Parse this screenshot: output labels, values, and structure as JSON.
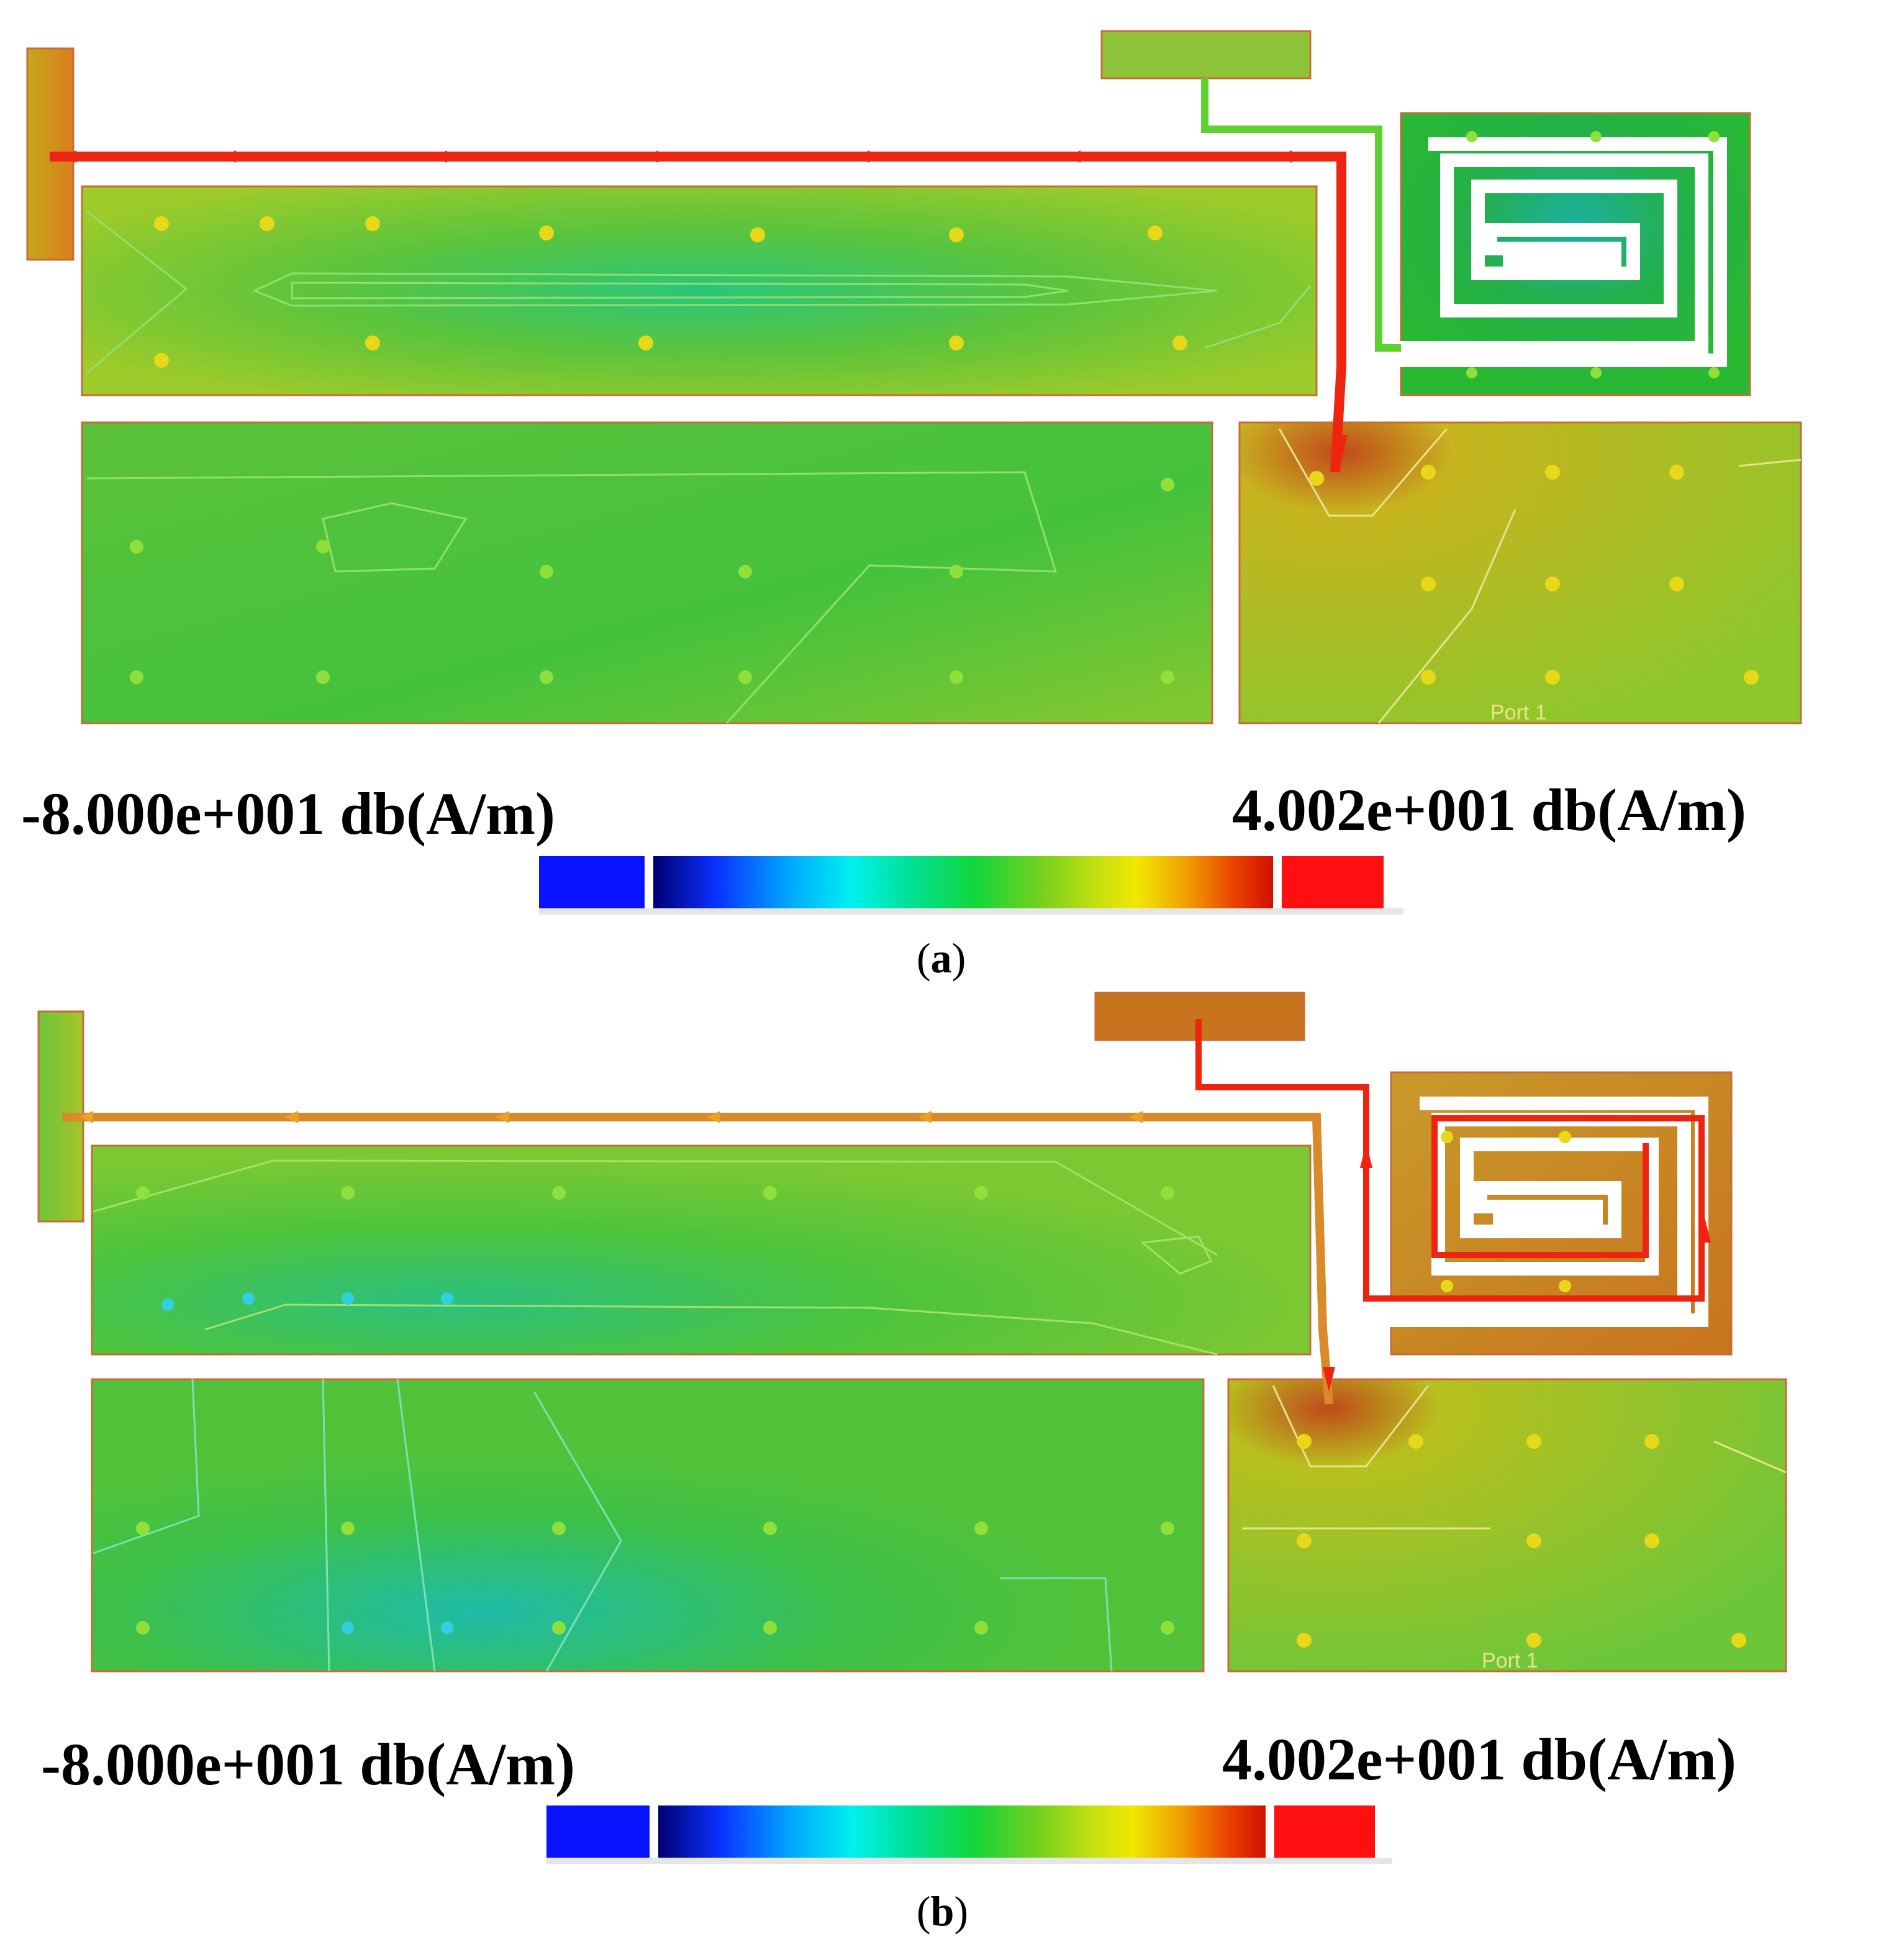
{
  "panels": [
    {
      "caption_open": "(",
      "caption_letter": "a",
      "caption_close": ")",
      "scale_min": "-8.000e+001 db(A/m)",
      "scale_max": "4.002e+001 db(A/m)",
      "port_label": "Port 1"
    },
    {
      "caption_open": "(",
      "caption_letter": "b",
      "caption_close": ")",
      "scale_min": "-8.000e+001 db(A/m)",
      "scale_max": "4.002e+001 db(A/m)",
      "port_label": "Port 1"
    }
  ],
  "colors": {
    "field_low": "#0a13ff",
    "field_mid": "#12d63a",
    "field_high": "#ff1a06",
    "current_path": "#ee2310"
  }
}
